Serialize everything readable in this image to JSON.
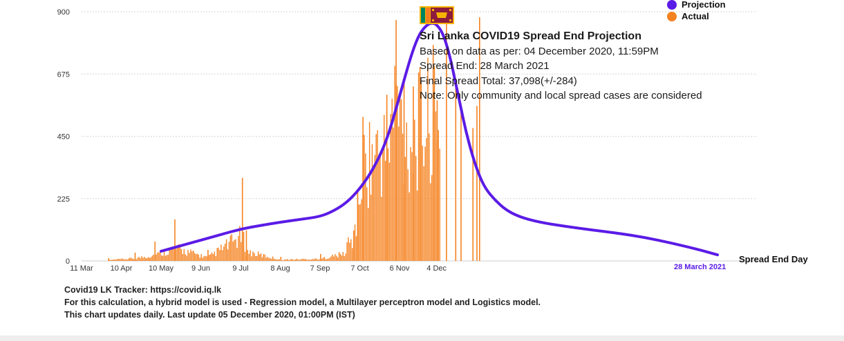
{
  "chart_data": {
    "type": "bar",
    "title": "Sri Lanka COVID19 Spread End Projection",
    "ylim": [
      0,
      900
    ],
    "yticks": [
      0,
      225,
      450,
      675,
      900
    ],
    "x_tick_labels": [
      "11 Mar",
      "10 Apr",
      "10 May",
      "9 Jun",
      "9 Jul",
      "8 Aug",
      "7 Sep",
      "7 Oct",
      "6 Nov",
      "4 Dec"
    ],
    "end_date_label": "28 March 2021",
    "end_day_label": "Spread End Day",
    "grid": true,
    "legend_placement": "top-right",
    "series": [
      {
        "name": "Projection",
        "type": "line",
        "color": "#5b1be6",
        "points": [
          [
            60,
            35
          ],
          [
            75,
            55
          ],
          [
            90,
            75
          ],
          [
            105,
            95
          ],
          [
            120,
            115
          ],
          [
            135,
            128
          ],
          [
            150,
            140
          ],
          [
            165,
            150
          ],
          [
            180,
            160
          ],
          [
            190,
            180
          ],
          [
            200,
            210
          ],
          [
            210,
            260
          ],
          [
            220,
            330
          ],
          [
            230,
            430
          ],
          [
            238,
            560
          ],
          [
            245,
            680
          ],
          [
            250,
            760
          ],
          [
            255,
            820
          ],
          [
            260,
            850
          ],
          [
            264,
            860
          ],
          [
            268,
            855
          ],
          [
            273,
            820
          ],
          [
            278,
            740
          ],
          [
            282,
            650
          ],
          [
            286,
            560
          ],
          [
            290,
            470
          ],
          [
            295,
            380
          ],
          [
            300,
            310
          ],
          [
            305,
            260
          ],
          [
            312,
            220
          ],
          [
            320,
            185
          ],
          [
            330,
            160
          ],
          [
            345,
            140
          ],
          [
            365,
            125
          ],
          [
            385,
            112
          ],
          [
            405,
            100
          ],
          [
            425,
            85
          ],
          [
            445,
            65
          ],
          [
            465,
            42
          ],
          [
            480,
            22
          ]
        ]
      },
      {
        "name": "Actual",
        "type": "bar",
        "color": "#f58220",
        "daily_peaks": [
          [
            20,
            10
          ],
          [
            40,
            30
          ],
          [
            55,
            70
          ],
          [
            70,
            150
          ],
          [
            95,
            40
          ],
          [
            121,
            300
          ],
          [
            124,
            110
          ],
          [
            150,
            15
          ],
          [
            180,
            25
          ],
          [
            205,
            110
          ],
          [
            208,
            260
          ],
          [
            212,
            520
          ],
          [
            230,
            600
          ],
          [
            237,
            870
          ],
          [
            243,
            650
          ],
          [
            250,
            630
          ],
          [
            255,
            700
          ],
          [
            265,
            780
          ],
          [
            268,
            580
          ],
          [
            275,
            870
          ],
          [
            282,
            650
          ],
          [
            286,
            560
          ],
          [
            295,
            480
          ],
          [
            298,
            560
          ],
          [
            300,
            880
          ]
        ]
      }
    ]
  },
  "annotation": {
    "title": "Sri Lanka COVID19 Spread End Projection",
    "lines": [
      "Based on data as per: 04 December 2020, 11:59PM",
      "Spread End: 28 March 2021",
      "Final Spread Total: 37,098(+/-284)",
      "Note: Only community and local spread cases are considered"
    ]
  },
  "legend": [
    {
      "label": "Projection",
      "color": "#5b1be6"
    },
    {
      "label": "Actual",
      "color": "#f58220"
    }
  ],
  "footer": [
    "Covid19 LK Tracker: https://covid.iq.lk",
    "For this calculation, a hybrid model is used - Regression model, a Multilayer perceptron model and Logistics model.",
    "This chart updates daily. Last update 05 December 2020, 01:00PM (IST)"
  ],
  "flag_icon": "sri-lanka-flag-icon"
}
